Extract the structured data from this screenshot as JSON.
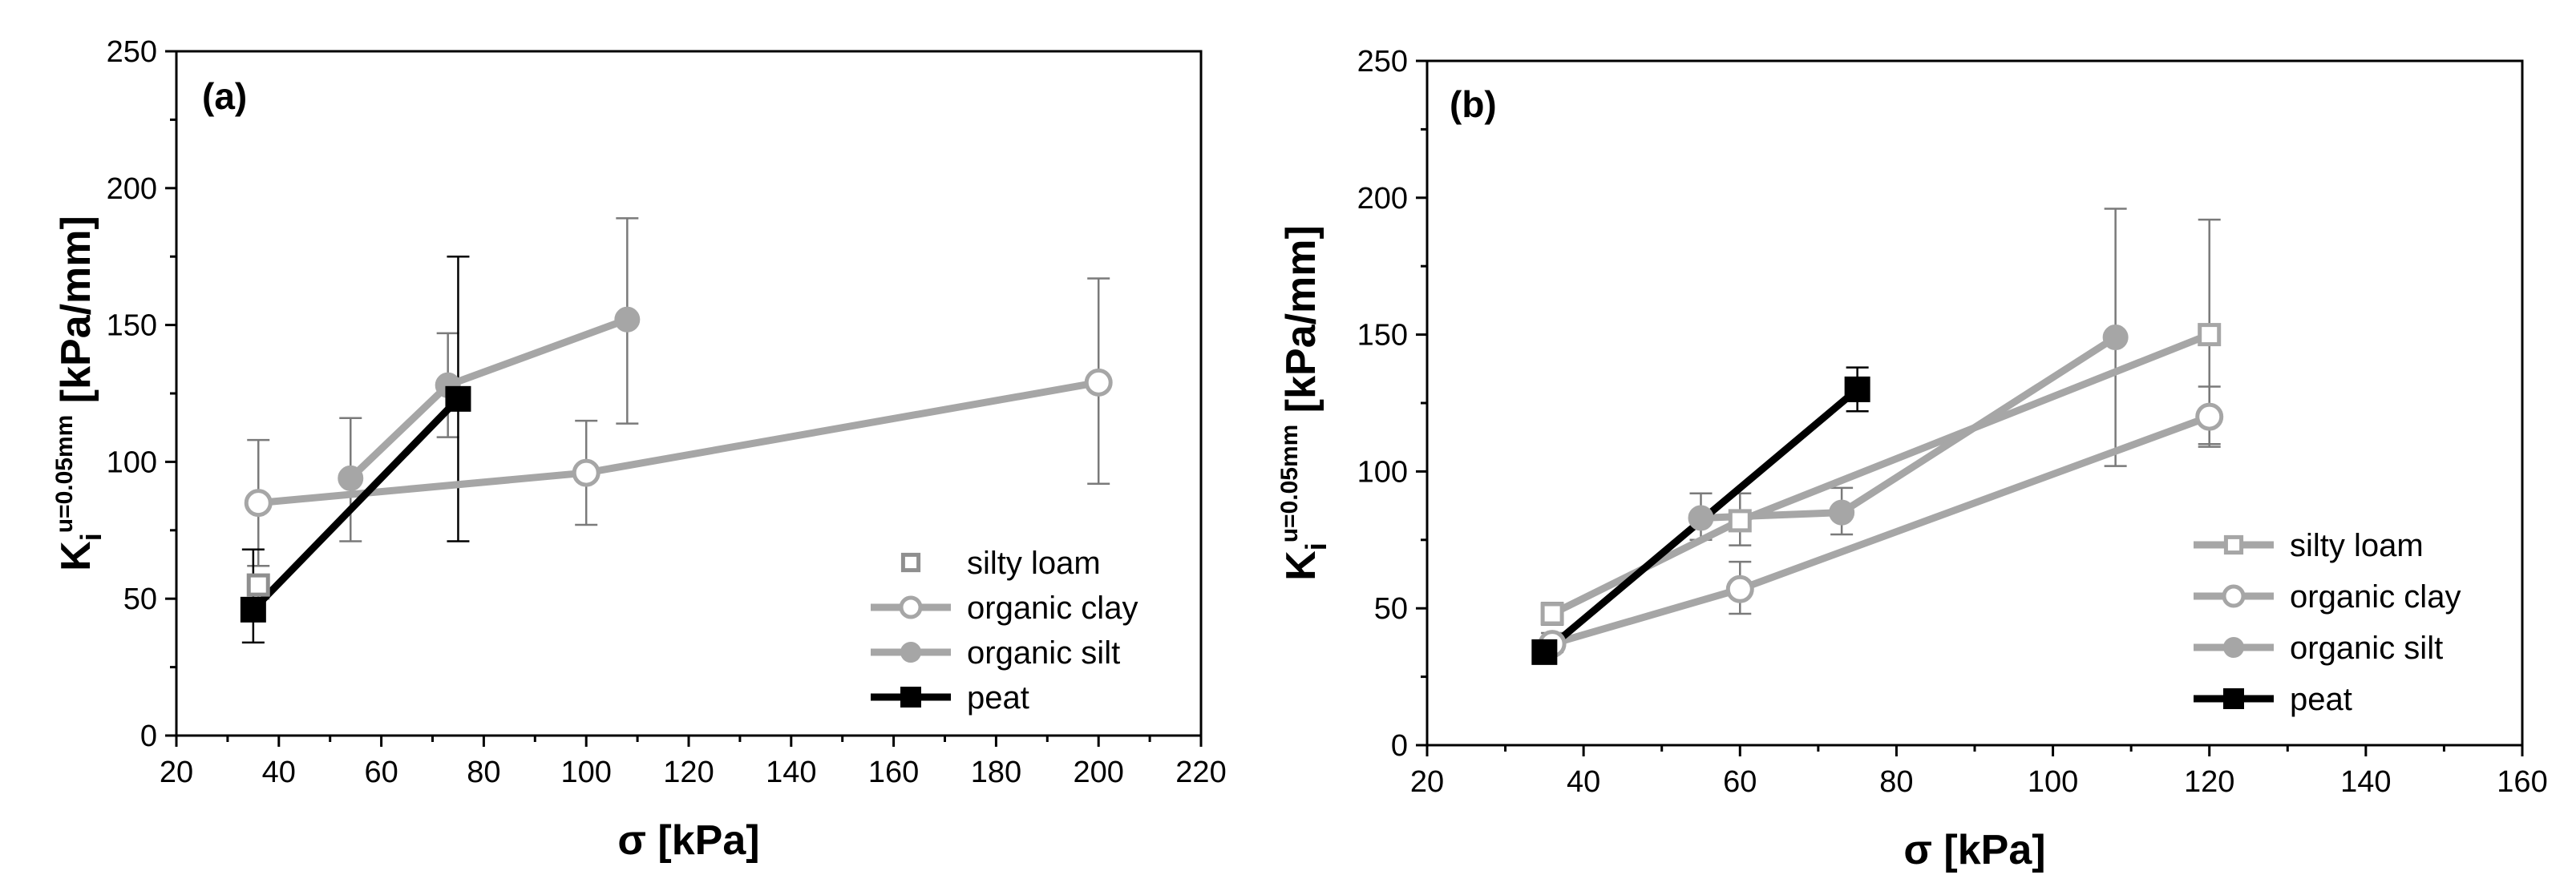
{
  "chart_data": [
    {
      "type": "line",
      "panel_label": "(a)",
      "xlabel": "σ [kPa]",
      "ylabel": {
        "base": "K",
        "sub": "i",
        "sup": "u=0.05mm",
        "unit": " [kPa/mm]"
      },
      "xlim": [
        20,
        220
      ],
      "ylim": [
        0,
        250
      ],
      "xticks": [
        20,
        40,
        60,
        80,
        100,
        120,
        140,
        160,
        180,
        200,
        220
      ],
      "yticks": [
        0,
        50,
        100,
        150,
        200,
        250
      ],
      "legend": {
        "position": "bottom-right"
      },
      "series": [
        {
          "name": "silty loam",
          "marker": "square-open",
          "color": "#8f8f8f",
          "line": false,
          "points": [
            {
              "x": 36,
              "y": 55
            }
          ],
          "errors": [
            {
              "x": 36,
              "low": 50,
              "high": 58
            }
          ]
        },
        {
          "name": "organic clay",
          "marker": "circle-open",
          "color": "#a6a6a6",
          "line": true,
          "points": [
            {
              "x": 36,
              "y": 85
            },
            {
              "x": 100,
              "y": 96
            },
            {
              "x": 200,
              "y": 129
            }
          ],
          "errors": [
            {
              "x": 36,
              "low": 62,
              "high": 108
            },
            {
              "x": 100,
              "low": 77,
              "high": 115
            },
            {
              "x": 200,
              "low": 92,
              "high": 167
            }
          ]
        },
        {
          "name": "organic silt",
          "marker": "circle-filled",
          "color": "#a6a6a6",
          "line": true,
          "points": [
            {
              "x": 54,
              "y": 94
            },
            {
              "x": 73,
              "y": 128
            },
            {
              "x": 108,
              "y": 152
            }
          ],
          "errors": [
            {
              "x": 54,
              "low": 71,
              "high": 116
            },
            {
              "x": 73,
              "low": 109,
              "high": 147
            },
            {
              "x": 108,
              "low": 114,
              "high": 189
            }
          ]
        },
        {
          "name": "peat",
          "marker": "square-filled",
          "color": "#000000",
          "line": true,
          "points": [
            {
              "x": 35,
              "y": 46
            },
            {
              "x": 75,
              "y": 123
            }
          ],
          "errors": [
            {
              "x": 35,
              "low": 34,
              "high": 68
            },
            {
              "x": 75,
              "low": 71,
              "high": 175
            }
          ]
        }
      ]
    },
    {
      "type": "line",
      "panel_label": "(b)",
      "xlabel": "σ [kPa]",
      "ylabel": {
        "base": "K",
        "sub": "i",
        "sup": "u=0.05mm",
        "unit": " [kPa/mm]"
      },
      "xlim": [
        20,
        160
      ],
      "ylim": [
        0,
        250
      ],
      "xticks": [
        20,
        40,
        60,
        80,
        100,
        120,
        140,
        160
      ],
      "yticks": [
        0,
        50,
        100,
        150,
        200,
        250
      ],
      "legend": {
        "position": "bottom-right"
      },
      "series": [
        {
          "name": "silty loam",
          "marker": "square-open",
          "color": "#a6a6a6",
          "line": true,
          "points": [
            {
              "x": 36,
              "y": 48
            },
            {
              "x": 60,
              "y": 82
            },
            {
              "x": 120,
              "y": 150
            }
          ],
          "errors": [
            {
              "x": 36,
              "low": 44,
              "high": 52
            },
            {
              "x": 60,
              "low": 73,
              "high": 92
            },
            {
              "x": 120,
              "low": 110,
              "high": 192
            }
          ]
        },
        {
          "name": "organic clay",
          "marker": "circle-open",
          "color": "#a6a6a6",
          "line": true,
          "points": [
            {
              "x": 36,
              "y": 37
            },
            {
              "x": 60,
              "y": 57
            },
            {
              "x": 120,
              "y": 120
            }
          ],
          "errors": [
            {
              "x": 36,
              "low": 34,
              "high": 41
            },
            {
              "x": 60,
              "low": 48,
              "high": 67
            },
            {
              "x": 120,
              "low": 109,
              "high": 131
            }
          ]
        },
        {
          "name": "organic silt",
          "marker": "circle-filled",
          "color": "#a6a6a6",
          "line": true,
          "points": [
            {
              "x": 55,
              "y": 83
            },
            {
              "x": 73,
              "y": 85
            },
            {
              "x": 108,
              "y": 149
            }
          ],
          "errors": [
            {
              "x": 55,
              "low": 75,
              "high": 92
            },
            {
              "x": 73,
              "low": 77,
              "high": 94
            },
            {
              "x": 108,
              "low": 102,
              "high": 196
            }
          ]
        },
        {
          "name": "peat",
          "marker": "square-filled",
          "color": "#000000",
          "line": true,
          "points": [
            {
              "x": 35,
              "y": 34
            },
            {
              "x": 75,
              "y": 130
            }
          ],
          "errors": [
            {
              "x": 35,
              "low": 31,
              "high": 37
            },
            {
              "x": 75,
              "low": 122,
              "high": 138
            }
          ]
        }
      ]
    }
  ]
}
